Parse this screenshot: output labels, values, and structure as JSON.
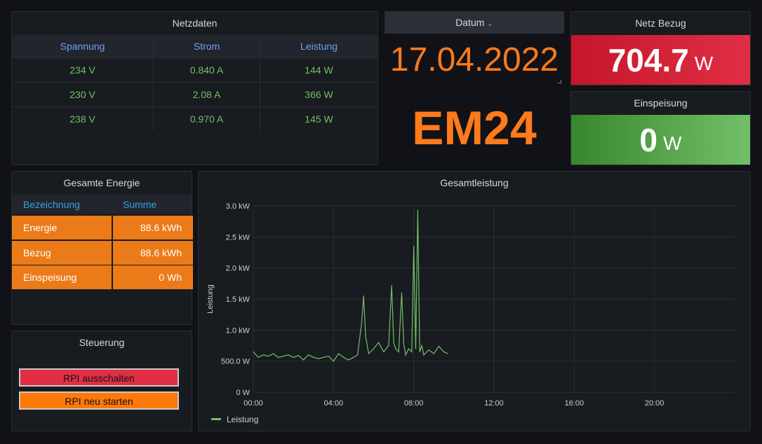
{
  "netzdaten": {
    "title": "Netzdaten",
    "columns": [
      "Spannung",
      "Strom",
      "Leistung"
    ],
    "rows": [
      [
        "234 V",
        "0.840 A",
        "144 W"
      ],
      [
        "230 V",
        "2.08 A",
        "366 W"
      ],
      [
        "238 V",
        "0.970 A",
        "145 W"
      ]
    ]
  },
  "datum": {
    "header_label": "Datum",
    "date": "17.04.2022",
    "device": "EM24"
  },
  "netz_bezug": {
    "title": "Netz Bezug",
    "value": "704.7",
    "unit": "W"
  },
  "einspeisung": {
    "title": "Einspeisung",
    "value": "0",
    "unit": "W"
  },
  "gesamte_energie": {
    "title": "Gesamte Energie",
    "columns": [
      "Bezeichnung",
      "Summe"
    ],
    "rows": [
      [
        "Energie",
        "88.6 kWh"
      ],
      [
        "Bezug",
        "88.6 kWh"
      ],
      [
        "Einspeisung",
        "0 Wh"
      ]
    ]
  },
  "steuerung": {
    "title": "Steuerung",
    "buttons": [
      "RPI ausschalten",
      "RPI neu starten"
    ]
  },
  "colors": {
    "orange": "#ff7a1a",
    "red": "#e02f44",
    "green": "#73bf69",
    "blue": "#6e9fff"
  },
  "chart_data": {
    "type": "line",
    "title": "Gesamtleistung",
    "ylabel": "Leistung",
    "xlabel": "",
    "x_ticks": [
      "00:00",
      "04:00",
      "08:00",
      "12:00",
      "16:00",
      "20:00"
    ],
    "y_ticks": [
      "0 W",
      "500.0 W",
      "1.0 kW",
      "1.5 kW",
      "2.0 kW",
      "2.5 kW",
      "3.0 kW"
    ],
    "xlim_hours": [
      0,
      24
    ],
    "ylim_w": [
      0,
      3000
    ],
    "grid": true,
    "legend": "bottom-left",
    "series": [
      {
        "name": "Leistung",
        "color": "#73bf69",
        "x_hours": [
          0,
          0.25,
          0.5,
          0.75,
          1.0,
          1.25,
          1.5,
          1.75,
          2.0,
          2.25,
          2.5,
          2.75,
          3.0,
          3.25,
          3.5,
          3.75,
          4.0,
          4.25,
          4.5,
          4.75,
          5.0,
          5.2,
          5.4,
          5.5,
          5.6,
          5.75,
          6.0,
          6.25,
          6.5,
          6.75,
          6.9,
          7.0,
          7.1,
          7.25,
          7.4,
          7.5,
          7.6,
          7.75,
          7.9,
          8.0,
          8.1,
          8.2,
          8.3,
          8.4,
          8.5,
          8.75,
          9.0,
          9.25,
          9.5,
          9.7
        ],
        "y_w": [
          650,
          560,
          600,
          580,
          620,
          560,
          580,
          600,
          560,
          590,
          520,
          600,
          560,
          540,
          560,
          580,
          500,
          620,
          560,
          520,
          560,
          600,
          1100,
          1550,
          900,
          620,
          700,
          800,
          650,
          750,
          1720,
          800,
          700,
          650,
          1600,
          780,
          600,
          700,
          650,
          2350,
          700,
          2930,
          650,
          750,
          600,
          680,
          620,
          740,
          650,
          620
        ]
      }
    ]
  }
}
